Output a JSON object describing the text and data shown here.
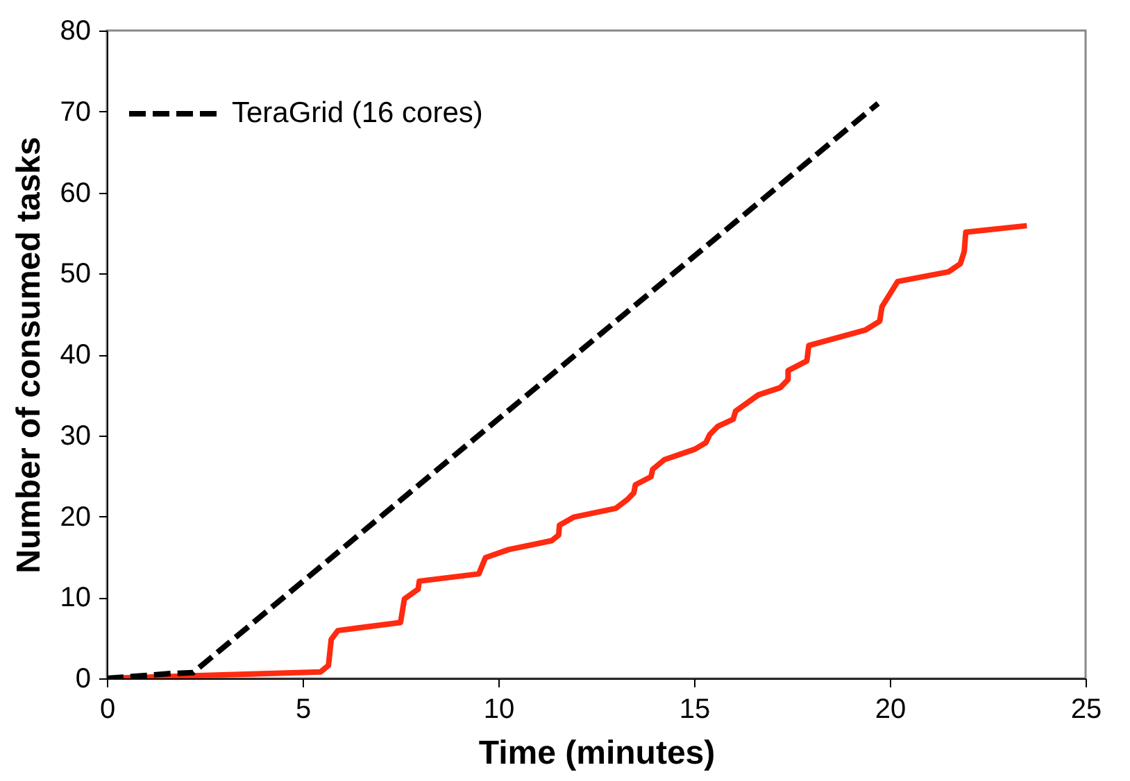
{
  "chart_data": {
    "type": "line",
    "xlabel": "Time (minutes)",
    "ylabel": "Number of consumed tasks",
    "xlim": [
      0,
      25
    ],
    "xticks": [
      0,
      5,
      10,
      15,
      20,
      25
    ],
    "ylim": [
      0,
      80
    ],
    "yticks": [
      0,
      10,
      20,
      30,
      40,
      50,
      60,
      70,
      80
    ],
    "grid": false,
    "legend": "top left",
    "marker": "none",
    "series": [
      {
        "color": "#ff2a0f",
        "line_style": "solid",
        "x": [
          0,
          5.46,
          5.66,
          5.73,
          5.9,
          7.5,
          7.6,
          7.95,
          7.98,
          9.5,
          9.67,
          10.26,
          11.36,
          11.54,
          11.56,
          11.92,
          13,
          13.3,
          13.46,
          13.5,
          13.9,
          13.94,
          14.24,
          15.02,
          15.3,
          15.4,
          15.6,
          16,
          16.06,
          16.64,
          17.2,
          17.4,
          17.4,
          17.88,
          17.93,
          19.37,
          19.74,
          19.8,
          20.2,
          21.5,
          21.8,
          21.9,
          21.94,
          23.5
        ],
        "values": [
          0,
          0.8,
          1.6,
          4.8,
          5.9,
          6.9,
          9.8,
          11,
          12,
          12.9,
          14.9,
          15.9,
          17,
          17.7,
          18.9,
          19.9,
          21,
          22.1,
          22.9,
          23.9,
          24.9,
          25.8,
          27,
          28.3,
          29.1,
          30.1,
          31.1,
          32,
          33,
          35,
          35.9,
          36.9,
          38,
          39.2,
          41.1,
          43,
          44.1,
          45.9,
          49,
          50.2,
          51.2,
          52.7,
          55.1,
          55.9
        ]
      },
      {
        "name": "TeraGrid (16 cores)",
        "color": "#000000",
        "line_style": "dashed",
        "x": [
          0,
          1.65,
          2.2,
          19.7
        ],
        "values": [
          0,
          0.6,
          0.7,
          71
        ]
      }
    ]
  }
}
